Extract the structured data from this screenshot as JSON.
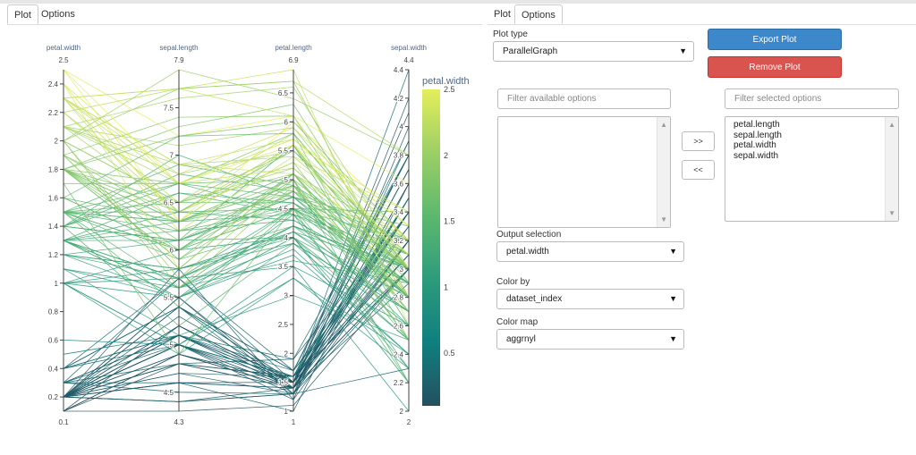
{
  "left_tabs": [
    {
      "label": "Plot",
      "active": true
    },
    {
      "label": "Options",
      "active": false
    }
  ],
  "right_tabs": [
    {
      "label": "Plot",
      "active": false
    },
    {
      "label": "Options",
      "active": true
    }
  ],
  "options": {
    "plot_type_label": "Plot type",
    "plot_type_value": "ParallelGraph",
    "export_label": "Export Plot",
    "remove_label": "Remove Plot",
    "filter_available_placeholder": "Filter available options",
    "filter_selected_placeholder": "Filter selected options",
    "move_right_label": ">>",
    "move_left_label": "<<",
    "selected_options": [
      "petal.length",
      "sepal.length",
      "petal.width",
      "sepal.width"
    ],
    "output_selection_label": "Output selection",
    "output_selection_value": "petal.width",
    "color_by_label": "Color by",
    "color_by_value": "dataset_index",
    "color_map_label": "Color map",
    "color_map_value": "aggrnyl"
  },
  "colors": {
    "export_button": "#3d87cb",
    "remove_button": "#d9534f",
    "axis_label": "#506784",
    "colormap": [
      "#24505f",
      "#0f7f7f",
      "#2d9b7c",
      "#5cb86e",
      "#9ccf66",
      "#e4ee5a"
    ]
  },
  "chart_data": {
    "type": "parallel_coordinates",
    "dimensions": [
      {
        "label": "petal.width",
        "range": [
          0.1,
          2.5
        ],
        "ticks": [
          0.2,
          0.4,
          0.6,
          0.8,
          1,
          1.2,
          1.4,
          1.6,
          1.8,
          2,
          2.2,
          2.4
        ],
        "min_label": "0.1",
        "max_label": "2.5"
      },
      {
        "label": "sepal.length",
        "range": [
          4.3,
          7.9
        ],
        "ticks": [
          4.5,
          5,
          5.5,
          6,
          6.5,
          7,
          7.5
        ],
        "min_label": "4.3",
        "max_label": "7.9"
      },
      {
        "label": "petal.length",
        "range": [
          1,
          6.9
        ],
        "ticks": [
          1,
          1.5,
          2,
          2.5,
          3,
          3.5,
          4,
          4.5,
          5,
          5.5,
          6,
          6.5
        ],
        "min_label": "1",
        "max_label": "6.9"
      },
      {
        "label": "sepal.width",
        "range": [
          2,
          4.4
        ],
        "ticks": [
          2,
          2.2,
          2.4,
          2.6,
          2.8,
          3,
          3.2,
          3.4,
          3.6,
          3.8,
          4,
          4.2,
          4.4
        ],
        "min_label": "2",
        "max_label": "4.4"
      }
    ],
    "color_dimension": "petal.width",
    "colorbar": {
      "title": "petal.width",
      "ticks": [
        0.5,
        1,
        1.5,
        2,
        2.5
      ]
    },
    "records": [
      [
        0.2,
        5.1,
        1.4,
        3.5
      ],
      [
        0.2,
        4.9,
        1.4,
        3.0
      ],
      [
        0.2,
        4.7,
        1.3,
        3.2
      ],
      [
        0.2,
        4.6,
        1.5,
        3.1
      ],
      [
        0.2,
        5.0,
        1.4,
        3.6
      ],
      [
        0.4,
        5.4,
        1.7,
        3.9
      ],
      [
        0.3,
        4.6,
        1.4,
        3.4
      ],
      [
        0.2,
        5.0,
        1.5,
        3.4
      ],
      [
        0.2,
        4.4,
        1.4,
        2.9
      ],
      [
        0.1,
        4.9,
        1.5,
        3.1
      ],
      [
        0.2,
        5.4,
        1.5,
        3.7
      ],
      [
        0.2,
        4.8,
        1.6,
        3.4
      ],
      [
        0.1,
        4.8,
        1.4,
        3.0
      ],
      [
        0.1,
        4.3,
        1.1,
        3.0
      ],
      [
        0.2,
        5.8,
        1.2,
        4.0
      ],
      [
        0.4,
        5.7,
        1.5,
        4.4
      ],
      [
        0.4,
        5.4,
        1.3,
        3.9
      ],
      [
        0.3,
        5.1,
        1.4,
        3.5
      ],
      [
        0.3,
        5.7,
        1.7,
        3.8
      ],
      [
        0.3,
        5.1,
        1.5,
        3.8
      ],
      [
        0.2,
        5.4,
        1.7,
        3.4
      ],
      [
        0.4,
        5.1,
        1.5,
        3.7
      ],
      [
        0.2,
        4.6,
        1.0,
        3.6
      ],
      [
        0.5,
        5.1,
        1.7,
        3.3
      ],
      [
        0.2,
        4.8,
        1.9,
        3.4
      ],
      [
        0.2,
        5.0,
        1.6,
        3.0
      ],
      [
        0.4,
        5.0,
        1.6,
        3.4
      ],
      [
        0.2,
        5.2,
        1.5,
        3.5
      ],
      [
        0.2,
        5.2,
        1.4,
        3.4
      ],
      [
        0.2,
        4.7,
        1.6,
        3.2
      ],
      [
        0.2,
        4.8,
        1.6,
        3.1
      ],
      [
        0.4,
        5.4,
        1.5,
        3.4
      ],
      [
        0.1,
        5.2,
        1.5,
        4.1
      ],
      [
        0.2,
        5.5,
        1.4,
        4.2
      ],
      [
        0.2,
        4.9,
        1.5,
        3.1
      ],
      [
        0.2,
        5.0,
        1.2,
        3.2
      ],
      [
        0.2,
        5.5,
        1.3,
        3.5
      ],
      [
        0.1,
        4.9,
        1.4,
        3.6
      ],
      [
        0.2,
        4.4,
        1.3,
        3.0
      ],
      [
        0.2,
        5.1,
        1.5,
        3.4
      ],
      [
        0.3,
        5.0,
        1.3,
        3.5
      ],
      [
        0.3,
        4.5,
        1.3,
        2.3
      ],
      [
        0.2,
        4.4,
        1.3,
        3.2
      ],
      [
        0.6,
        5.0,
        1.6,
        3.5
      ],
      [
        0.4,
        5.1,
        1.9,
        3.8
      ],
      [
        0.3,
        4.8,
        1.4,
        3.0
      ],
      [
        0.2,
        5.1,
        1.6,
        3.8
      ],
      [
        0.2,
        4.6,
        1.4,
        3.2
      ],
      [
        0.2,
        5.3,
        1.5,
        3.7
      ],
      [
        0.2,
        5.0,
        1.4,
        3.3
      ],
      [
        1.4,
        7.0,
        4.7,
        3.2
      ],
      [
        1.5,
        6.4,
        4.5,
        3.2
      ],
      [
        1.5,
        6.9,
        4.9,
        3.1
      ],
      [
        1.3,
        5.5,
        4.0,
        2.3
      ],
      [
        1.5,
        6.5,
        4.6,
        2.8
      ],
      [
        1.3,
        5.7,
        4.5,
        2.8
      ],
      [
        1.6,
        6.3,
        4.7,
        3.3
      ],
      [
        1.0,
        4.9,
        3.3,
        2.4
      ],
      [
        1.3,
        6.6,
        4.6,
        2.9
      ],
      [
        1.4,
        5.2,
        3.9,
        2.7
      ],
      [
        1.0,
        5.0,
        3.5,
        2.0
      ],
      [
        1.5,
        5.9,
        4.2,
        3.0
      ],
      [
        1.0,
        6.0,
        4.0,
        2.2
      ],
      [
        1.4,
        6.1,
        4.7,
        2.9
      ],
      [
        1.3,
        5.6,
        3.6,
        2.9
      ],
      [
        1.4,
        6.7,
        4.4,
        3.1
      ],
      [
        1.5,
        5.6,
        4.5,
        3.0
      ],
      [
        1.0,
        5.8,
        4.1,
        2.7
      ],
      [
        1.5,
        6.2,
        4.5,
        2.2
      ],
      [
        1.1,
        5.6,
        3.9,
        2.5
      ],
      [
        1.8,
        5.9,
        4.8,
        3.2
      ],
      [
        1.3,
        6.1,
        4.0,
        2.8
      ],
      [
        1.5,
        6.3,
        4.9,
        2.5
      ],
      [
        1.2,
        6.1,
        4.7,
        2.8
      ],
      [
        1.3,
        6.4,
        4.3,
        2.9
      ],
      [
        1.4,
        6.6,
        4.4,
        3.0
      ],
      [
        1.4,
        6.8,
        4.8,
        2.8
      ],
      [
        1.7,
        6.7,
        5.0,
        3.0
      ],
      [
        1.5,
        6.0,
        4.5,
        2.9
      ],
      [
        1.0,
        5.7,
        3.5,
        2.6
      ],
      [
        1.1,
        5.5,
        3.8,
        2.4
      ],
      [
        1.0,
        5.5,
        3.7,
        2.4
      ],
      [
        1.2,
        5.8,
        3.9,
        2.7
      ],
      [
        1.6,
        6.0,
        5.1,
        2.7
      ],
      [
        1.5,
        5.4,
        4.5,
        3.0
      ],
      [
        1.6,
        6.0,
        4.5,
        3.4
      ],
      [
        1.5,
        6.7,
        4.7,
        3.1
      ],
      [
        1.3,
        6.3,
        4.4,
        2.3
      ],
      [
        1.3,
        5.6,
        4.1,
        3.0
      ],
      [
        1.3,
        5.5,
        4.0,
        2.5
      ],
      [
        1.2,
        5.5,
        4.4,
        2.6
      ],
      [
        1.4,
        6.1,
        4.6,
        3.0
      ],
      [
        1.2,
        5.8,
        4.0,
        2.6
      ],
      [
        1.0,
        5.0,
        3.3,
        2.3
      ],
      [
        1.3,
        5.6,
        4.2,
        2.7
      ],
      [
        1.2,
        5.7,
        4.2,
        3.0
      ],
      [
        1.3,
        5.7,
        4.2,
        2.9
      ],
      [
        1.3,
        6.2,
        4.3,
        2.9
      ],
      [
        1.1,
        5.1,
        3.0,
        2.5
      ],
      [
        1.3,
        5.7,
        4.1,
        2.8
      ],
      [
        2.5,
        6.3,
        6.0,
        3.3
      ],
      [
        1.9,
        5.8,
        5.1,
        2.7
      ],
      [
        2.1,
        7.1,
        5.9,
        3.0
      ],
      [
        1.8,
        6.3,
        5.6,
        2.9
      ],
      [
        2.2,
        6.5,
        5.8,
        3.0
      ],
      [
        2.1,
        7.6,
        6.6,
        3.0
      ],
      [
        1.7,
        4.9,
        4.5,
        2.5
      ],
      [
        1.8,
        7.3,
        6.3,
        2.9
      ],
      [
        1.8,
        6.7,
        5.8,
        2.5
      ],
      [
        2.5,
        7.2,
        6.1,
        3.6
      ],
      [
        2.0,
        6.5,
        5.1,
        3.2
      ],
      [
        1.9,
        6.4,
        5.3,
        2.7
      ],
      [
        2.1,
        6.8,
        5.5,
        3.0
      ],
      [
        2.0,
        5.7,
        5.0,
        2.5
      ],
      [
        2.4,
        5.8,
        5.1,
        2.8
      ],
      [
        2.3,
        6.4,
        5.3,
        3.2
      ],
      [
        1.8,
        6.5,
        5.5,
        3.0
      ],
      [
        2.2,
        7.7,
        6.7,
        3.8
      ],
      [
        2.3,
        7.7,
        6.9,
        2.6
      ],
      [
        1.5,
        6.0,
        5.0,
        2.2
      ],
      [
        2.3,
        6.9,
        5.7,
        3.2
      ],
      [
        2.0,
        5.6,
        4.9,
        2.8
      ],
      [
        2.0,
        7.7,
        6.7,
        2.8
      ],
      [
        1.8,
        6.3,
        4.9,
        2.7
      ],
      [
        2.1,
        6.7,
        5.7,
        3.3
      ],
      [
        1.8,
        7.2,
        6.0,
        3.2
      ],
      [
        1.8,
        6.2,
        4.8,
        2.8
      ],
      [
        1.8,
        6.1,
        4.9,
        3.0
      ],
      [
        2.1,
        6.4,
        5.6,
        2.8
      ],
      [
        1.6,
        7.2,
        5.8,
        3.0
      ],
      [
        1.9,
        7.4,
        6.1,
        2.8
      ],
      [
        2.0,
        7.9,
        6.4,
        3.8
      ],
      [
        2.2,
        6.4,
        5.6,
        2.8
      ],
      [
        1.5,
        6.3,
        5.1,
        2.8
      ],
      [
        1.4,
        6.1,
        5.6,
        2.6
      ],
      [
        2.3,
        7.7,
        6.1,
        3.0
      ],
      [
        2.4,
        6.3,
        5.6,
        3.4
      ],
      [
        1.8,
        6.4,
        5.5,
        3.1
      ],
      [
        1.8,
        6.0,
        4.8,
        3.0
      ],
      [
        2.1,
        6.9,
        5.4,
        3.1
      ],
      [
        2.4,
        6.7,
        5.6,
        3.1
      ],
      [
        2.3,
        6.9,
        5.1,
        3.1
      ],
      [
        1.9,
        5.8,
        5.1,
        2.7
      ],
      [
        2.3,
        6.8,
        5.9,
        3.2
      ],
      [
        2.5,
        6.7,
        5.7,
        3.3
      ],
      [
        2.3,
        6.7,
        5.2,
        3.0
      ],
      [
        1.9,
        6.3,
        5.0,
        2.5
      ],
      [
        2.0,
        6.5,
        5.2,
        3.0
      ],
      [
        2.3,
        6.2,
        5.4,
        3.4
      ],
      [
        1.8,
        5.9,
        5.1,
        3.0
      ]
    ]
  }
}
